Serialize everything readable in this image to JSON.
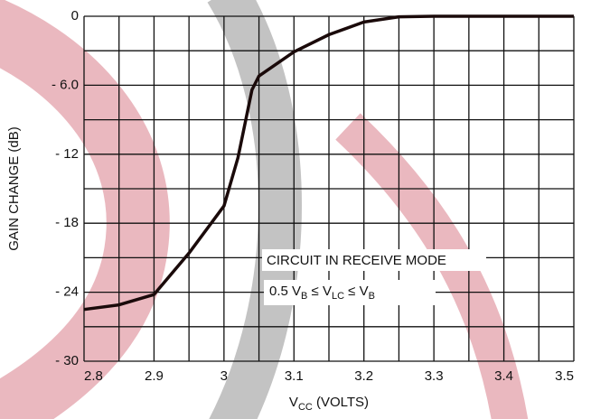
{
  "chart_data": {
    "type": "line",
    "ylabel": "GAIN CHANGE (dB)",
    "xlabel_parts": [
      "V",
      "CC",
      " (VOLTS)"
    ],
    "annotation": "CIRCUIT IN RECEIVE MODE",
    "condition_parts": [
      "0.5 V",
      "B",
      " ≤ V",
      "LC",
      " ≤ V",
      "B"
    ],
    "x": [
      2.8,
      2.85,
      2.9,
      2.95,
      3.0,
      3.02,
      3.04,
      3.05,
      3.1,
      3.15,
      3.2,
      3.25,
      3.3,
      3.4,
      3.5
    ],
    "series": [
      {
        "color": "#1a0a0a",
        "values": [
          -25.5,
          -25.1,
          -24.2,
          -20.6,
          -16.5,
          -12.3,
          -6.4,
          -5.2,
          -3.1,
          -1.6,
          -0.5,
          -0.05,
          0,
          0,
          0
        ]
      }
    ],
    "xlim": [
      2.8,
      3.5
    ],
    "xticks": [
      2.8,
      2.9,
      3.0,
      3.1,
      3.2,
      3.3,
      3.4,
      3.5
    ],
    "ylim": [
      -30,
      0
    ],
    "yticks": [
      {
        "value": -30,
        "label": "- 30"
      },
      {
        "value": -24,
        "label": "- 24"
      },
      {
        "value": -18,
        "label": "- 18"
      },
      {
        "value": -12,
        "label": "- 12"
      },
      {
        "value": -6,
        "label": "- 6.0"
      },
      0
    ],
    "grid": true
  }
}
